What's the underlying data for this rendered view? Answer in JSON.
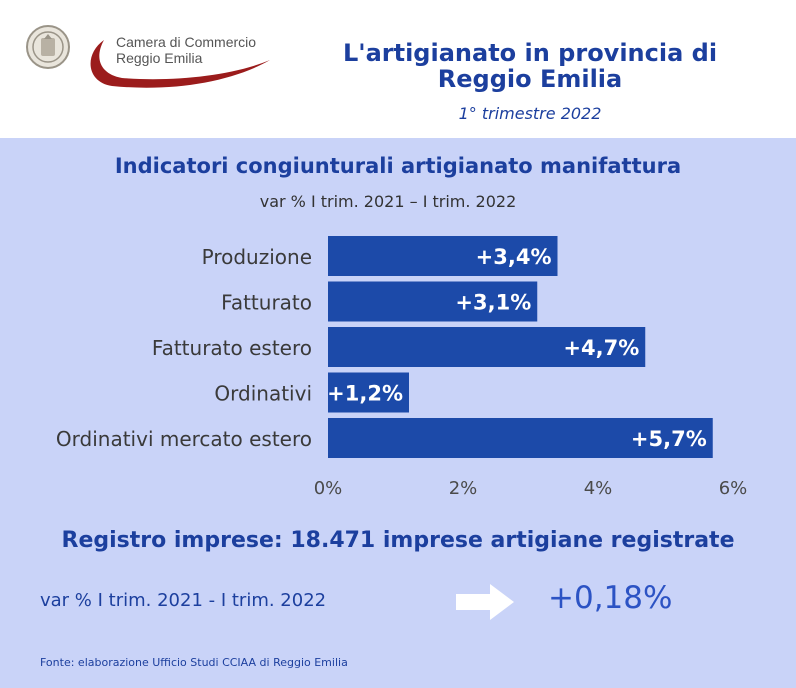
{
  "header": {
    "logo_line1": "Camera di Commercio",
    "logo_line2": "Reggio Emilia",
    "title_line1": "L'artigianato in provincia di",
    "title_line2": "Reggio Emilia",
    "period": "1° trimestre 2022",
    "icons": [
      "seal-icon",
      "swoosh-logo-icon"
    ]
  },
  "colors": {
    "background": "#c9d3f8",
    "header_background": "#ffffff",
    "bar": "#1c4aa9",
    "title": "#1c3f9e",
    "logo_red": "#9b1c1c"
  },
  "chart_data": {
    "type": "bar",
    "orientation": "horizontal",
    "title": "Indicatori congiunturali artigianato manifattura",
    "subtitle": "var % I trim. 2021 – I trim. 2022",
    "categories": [
      "Produzione",
      "Fatturato",
      "Fatturato estero",
      "Ordinativi",
      "Ordinativi mercato estero"
    ],
    "values": [
      3.4,
      3.1,
      4.7,
      1.2,
      5.7
    ],
    "value_labels": [
      "+3,4%",
      "+3,1%",
      "+4,7%",
      "+1,2%",
      "+5,7%"
    ],
    "x_ticks": [
      0,
      2,
      4,
      6
    ],
    "x_tick_labels": [
      "0%",
      "2%",
      "4%",
      "6%"
    ],
    "xlim": [
      0,
      6
    ],
    "grid": false,
    "legend": false
  },
  "registro": {
    "title": "Registro imprese: 18.471 imprese artigiane registrate",
    "subtitle": "var % I trim. 2021 - I trim. 2022",
    "value": "+0,18%",
    "icon": "arrow-right-icon"
  },
  "footer": {
    "source": "Fonte: elaborazione Ufficio Studi CCIAA di Reggio Emilia"
  }
}
